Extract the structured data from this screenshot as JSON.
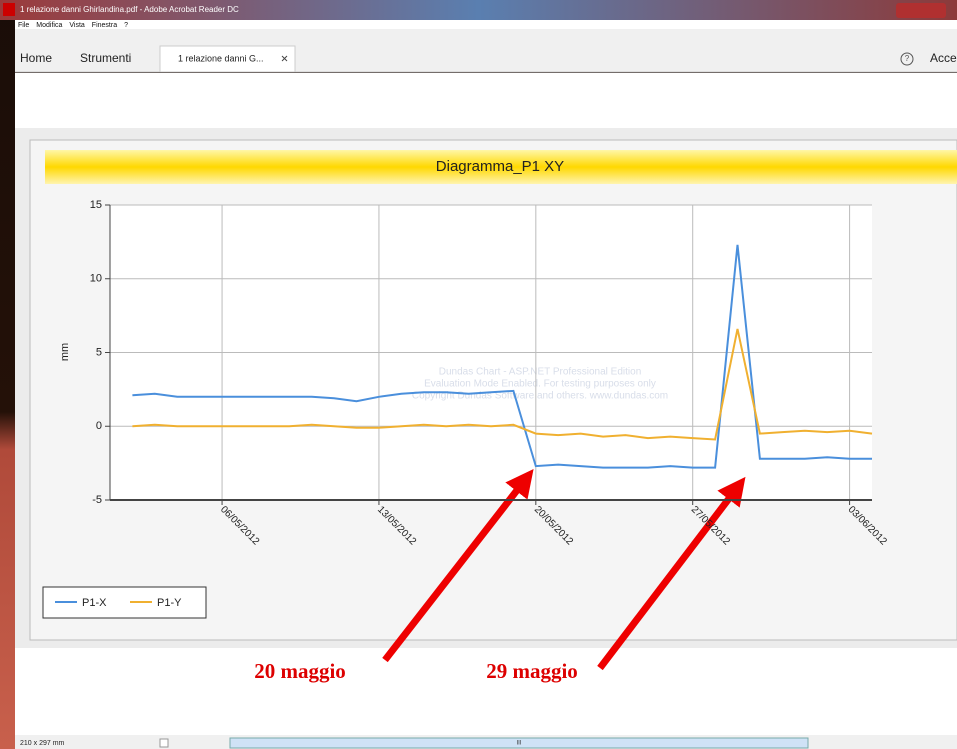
{
  "window": {
    "title": "1 relazione danni Ghirlandina.pdf - Adobe Acrobat Reader DC",
    "menu": [
      "File",
      "Modifica",
      "Vista",
      "Finestra",
      "?"
    ],
    "tabs": [
      "Home",
      "Strumenti",
      "1 relazione danni G..."
    ],
    "right_button": "Acce",
    "status": {
      "page_size": "210 x 297 mm",
      "scroll_grip": "III"
    }
  },
  "chart_data": {
    "type": "line",
    "title": "Diagramma_P1 XY",
    "y_label": "mm",
    "x": [
      "02/05/2012",
      "03/05/2012",
      "04/05/2012",
      "05/05/2012",
      "06/05/2012",
      "07/05/2012",
      "08/05/2012",
      "09/05/2012",
      "10/05/2012",
      "11/05/2012",
      "12/05/2012",
      "13/05/2012",
      "14/05/2012",
      "15/05/2012",
      "16/05/2012",
      "17/05/2012",
      "18/05/2012",
      "19/05/2012",
      "20/05/2012",
      "21/05/2012",
      "22/05/2012",
      "23/05/2012",
      "24/05/2012",
      "25/05/2012",
      "26/05/2012",
      "27/05/2012",
      "28/05/2012",
      "29/05/2012",
      "30/05/2012",
      "31/05/2012",
      "01/06/2012",
      "02/06/2012",
      "03/06/2012",
      "04/06/2012"
    ],
    "series": [
      {
        "name": "P1-X",
        "color": "#4a8fdc",
        "values": [
          2.1,
          2.2,
          2.0,
          2.0,
          2.0,
          2.0,
          2.0,
          2.0,
          2.0,
          1.9,
          1.7,
          2.0,
          2.2,
          2.3,
          2.3,
          2.2,
          2.3,
          2.4,
          -2.7,
          -2.6,
          -2.7,
          -2.8,
          -2.8,
          -2.8,
          -2.7,
          -2.8,
          -2.8,
          12.3,
          -2.2,
          -2.2,
          -2.2,
          -2.1,
          -2.2,
          -2.2
        ]
      },
      {
        "name": "P1-Y",
        "color": "#f0b030",
        "values": [
          0.0,
          0.1,
          0.0,
          0.0,
          0.0,
          0.0,
          0.0,
          0.0,
          0.1,
          0.0,
          -0.1,
          -0.1,
          0.0,
          0.1,
          0.0,
          0.1,
          0.0,
          0.1,
          -0.5,
          -0.6,
          -0.5,
          -0.7,
          -0.6,
          -0.8,
          -0.7,
          -0.8,
          -0.9,
          6.6,
          -0.5,
          -0.4,
          -0.3,
          -0.4,
          -0.3,
          -0.5
        ]
      }
    ],
    "xlim": [
      "01/05/2012",
      "04/06/2012"
    ],
    "xticks": [
      "06/05/2012",
      "13/05/2012",
      "20/05/2012",
      "27/05/2012",
      "03/06/2012"
    ],
    "ylim": [
      -5,
      15
    ],
    "yticks": [
      -5,
      0,
      5,
      10,
      15
    ],
    "grid": true,
    "watermark": [
      "Dundas Chart - ASP.NET Professional Edition",
      "Evaluation Mode Enabled. For testing purposes only",
      "Copyright Dundas Software and others. www.dundas.com"
    ]
  },
  "annotations": [
    "20 maggio",
    "29 maggio"
  ]
}
